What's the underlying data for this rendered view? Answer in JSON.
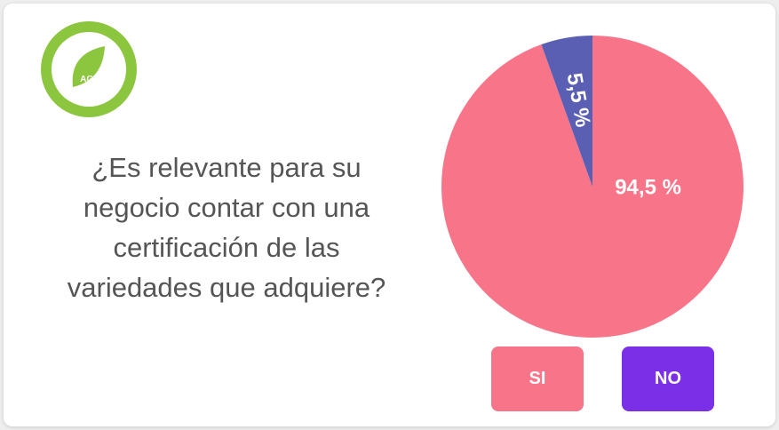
{
  "logo": {
    "text": "AGV"
  },
  "chart_data": {
    "type": "pie",
    "title": "¿Es relevante para su negocio contar con una certificación de las variedades que adquiere?",
    "categories": [
      "SI",
      "NO"
    ],
    "values": [
      94.5,
      5.5
    ],
    "value_labels": [
      "94,5 %",
      "5,5 %"
    ],
    "colors": [
      "#f87489",
      "#5a5fb4"
    ],
    "legend_colors": [
      "#f87489",
      "#7b2fe6"
    ]
  }
}
